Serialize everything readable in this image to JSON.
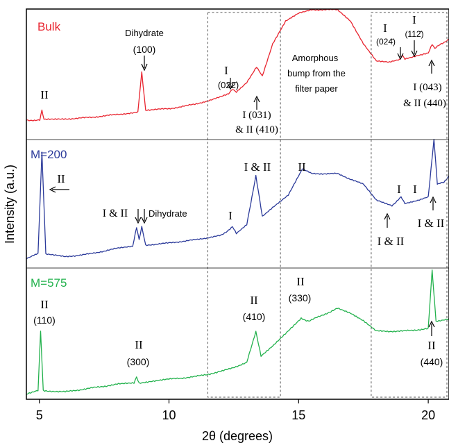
{
  "chart_data": {
    "type": "line",
    "xlabel": "2θ (degrees)",
    "ylabel": "Intensity (a.u.)",
    "xlim": [
      4.5,
      20.8
    ],
    "xticks": [
      5,
      10,
      15,
      20
    ],
    "grid": false,
    "panels": [
      {
        "name": "Bulk",
        "color": "#e8242f",
        "series": [
          {
            "name": "Bulk",
            "points": [
              [
                4.5,
                0.03
              ],
              [
                5.02,
                0.03
              ],
              [
                5.1,
                0.12
              ],
              [
                5.18,
                0.035
              ],
              [
                6,
                0.04
              ],
              [
                7,
                0.055
              ],
              [
                8,
                0.08
              ],
              [
                8.8,
                0.1
              ],
              [
                8.95,
                0.45
              ],
              [
                9.1,
                0.12
              ],
              [
                10,
                0.13
              ],
              [
                11,
                0.17
              ],
              [
                11.8,
                0.22
              ],
              [
                12.3,
                0.26
              ],
              [
                12.45,
                0.3
              ],
              [
                12.6,
                0.28
              ],
              [
                13.0,
                0.36
              ],
              [
                13.38,
                0.5
              ],
              [
                13.6,
                0.42
              ],
              [
                14,
                0.7
              ],
              [
                14.5,
                0.9
              ],
              [
                15.0,
                0.97
              ],
              [
                15.5,
                1.0
              ],
              [
                16.5,
                1.0
              ],
              [
                17.0,
                0.9
              ],
              [
                17.5,
                0.7
              ],
              [
                18,
                0.55
              ],
              [
                18.5,
                0.54
              ],
              [
                18.9,
                0.56
              ],
              [
                19.0,
                0.6
              ],
              [
                19.1,
                0.57
              ],
              [
                19.6,
                0.6
              ],
              [
                20.0,
                0.62
              ],
              [
                20.15,
                0.7
              ],
              [
                20.25,
                0.66
              ],
              [
                20.5,
                0.7
              ],
              [
                20.8,
                0.74
              ]
            ]
          }
        ],
        "annotations": [
          {
            "label": "II",
            "x": 5.1
          },
          {
            "label": "Dihydrate",
            "sublabel": "(100)",
            "x": 8.95
          },
          {
            "label": "I",
            "sublabel": "(022̄)",
            "x": 12.45
          },
          {
            "label": "I (031)",
            "sublabel": "& II (410)",
            "x": 13.38
          },
          {
            "label": "Amorphous",
            "lines": [
              "bump from the",
              "filter paper"
            ],
            "x": 16.0
          },
          {
            "label": "I",
            "sublabel": "(024̄)",
            "x": 19.0
          },
          {
            "label": "I",
            "sublabel": "(112̄)",
            "x": 19.6
          },
          {
            "label": "I (043)",
            "sublabel": "& II (440)",
            "x": 20.15
          }
        ]
      },
      {
        "name": "M=200",
        "color": "#2b3a9a",
        "series": [
          {
            "name": "M=200",
            "points": [
              [
                4.5,
                0.0
              ],
              [
                4.95,
                0.05
              ],
              [
                5.1,
                1.0
              ],
              [
                5.25,
                0.05
              ],
              [
                6,
                0.02
              ],
              [
                7,
                0.05
              ],
              [
                8,
                0.1
              ],
              [
                8.6,
                0.12
              ],
              [
                8.75,
                0.3
              ],
              [
                8.85,
                0.18
              ],
              [
                8.95,
                0.3
              ],
              [
                9.1,
                0.13
              ],
              [
                10,
                0.15
              ],
              [
                11,
                0.18
              ],
              [
                12,
                0.22
              ],
              [
                12.35,
                0.28
              ],
              [
                12.45,
                0.3
              ],
              [
                12.6,
                0.24
              ],
              [
                13.0,
                0.32
              ],
              [
                13.35,
                0.78
              ],
              [
                13.6,
                0.4
              ],
              [
                14,
                0.48
              ],
              [
                14.6,
                0.6
              ],
              [
                15.15,
                0.85
              ],
              [
                15.5,
                0.8
              ],
              [
                16.5,
                0.8
              ],
              [
                17.5,
                0.7
              ],
              [
                18,
                0.55
              ],
              [
                18.6,
                0.5
              ],
              [
                18.95,
                0.58
              ],
              [
                19.1,
                0.52
              ],
              [
                19.6,
                0.55
              ],
              [
                20.0,
                0.58
              ],
              [
                20.22,
                1.12
              ],
              [
                20.35,
                0.7
              ],
              [
                20.6,
                0.72
              ],
              [
                20.8,
                0.78
              ]
            ]
          }
        ],
        "annotations": [
          {
            "label": "II",
            "x": 5.1
          },
          {
            "label": "I & II",
            "x": 8.75
          },
          {
            "label": "Dihydrate",
            "x": 8.95
          },
          {
            "label": "I",
            "x": 12.45
          },
          {
            "label": "I & II",
            "x": 13.35
          },
          {
            "label": "II",
            "x": 15.15
          },
          {
            "label": "I & II",
            "x": 18.6
          },
          {
            "label": "I",
            "x": 18.95
          },
          {
            "label": "I",
            "x": 19.6
          },
          {
            "label": "I & II",
            "x": 20.22
          }
        ]
      },
      {
        "name": "M=575",
        "color": "#22b14c",
        "series": [
          {
            "name": "M=575",
            "points": [
              [
                4.5,
                0.0
              ],
              [
                4.95,
                0.03
              ],
              [
                5.05,
                0.5
              ],
              [
                5.15,
                0.03
              ],
              [
                6,
                0.02
              ],
              [
                7,
                0.05
              ],
              [
                8,
                0.08
              ],
              [
                8.65,
                0.09
              ],
              [
                8.75,
                0.14
              ],
              [
                8.85,
                0.09
              ],
              [
                10,
                0.12
              ],
              [
                11,
                0.14
              ],
              [
                12,
                0.18
              ],
              [
                13,
                0.25
              ],
              [
                13.35,
                0.5
              ],
              [
                13.55,
                0.3
              ],
              [
                14,
                0.38
              ],
              [
                14.6,
                0.5
              ],
              [
                15.1,
                0.6
              ],
              [
                15.4,
                0.58
              ],
              [
                16.5,
                0.68
              ],
              [
                17.0,
                0.64
              ],
              [
                17.5,
                0.58
              ],
              [
                18,
                0.5
              ],
              [
                19.0,
                0.5
              ],
              [
                20.0,
                0.52
              ],
              [
                20.15,
                0.98
              ],
              [
                20.3,
                0.58
              ],
              [
                20.8,
                0.6
              ]
            ]
          }
        ],
        "annotations": [
          {
            "label": "II",
            "sublabel": "(110)",
            "x": 5.05
          },
          {
            "label": "II",
            "sublabel": "(300)",
            "x": 8.75
          },
          {
            "label": "II",
            "sublabel": "(410)",
            "x": 13.35
          },
          {
            "label": "II",
            "sublabel": "(330)",
            "x": 15.1
          },
          {
            "label": "II",
            "sublabel": "(440)",
            "x": 20.15
          }
        ]
      }
    ],
    "highlight_regions": [
      [
        11.5,
        14.3
      ],
      [
        17.8,
        20.8
      ]
    ]
  }
}
